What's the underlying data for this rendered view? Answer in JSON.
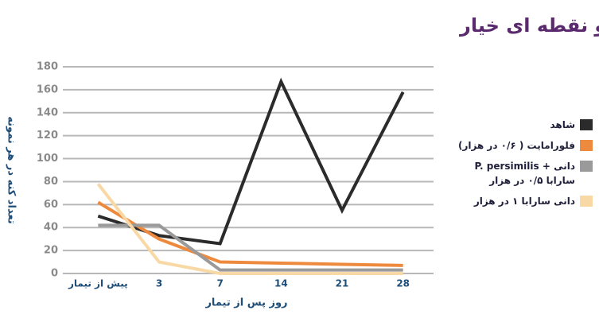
{
  "chart_data": {
    "type": "line",
    "title": "تاثیر دانـــی ســـارابـــا در کنترل کنه دو نقطه ای خیار",
    "xlabel": "روز پس از تیمار",
    "ylabel": "تعداد کنه در هر نمونه",
    "categories": [
      "پیش از تیمار",
      "3",
      "7",
      "14",
      "21",
      "28"
    ],
    "series": [
      {
        "name": "شاهد",
        "color": "#2b2b2b",
        "values": [
          50,
          33,
          26,
          167,
          55,
          158
        ]
      },
      {
        "name": "فلورامایت ( ۰/۶ در هزار)",
        "color": "#ee8a3e",
        "values": [
          62,
          30,
          10,
          9,
          8,
          7
        ]
      },
      {
        "name": "P. persimilis + دانی سارابا ۰/۵ در هزار",
        "color": "#9a9a9a",
        "values": [
          42,
          42,
          3,
          3,
          3,
          3
        ]
      },
      {
        "name": "دانی سارابا ۱ در هزار",
        "color": "#f8d9a6",
        "values": [
          78,
          10,
          0,
          0,
          0,
          0
        ]
      }
    ],
    "ylim": [
      0,
      180
    ],
    "yticks": [
      0,
      20,
      40,
      60,
      80,
      100,
      120,
      140,
      160,
      180
    ],
    "grid": true
  }
}
